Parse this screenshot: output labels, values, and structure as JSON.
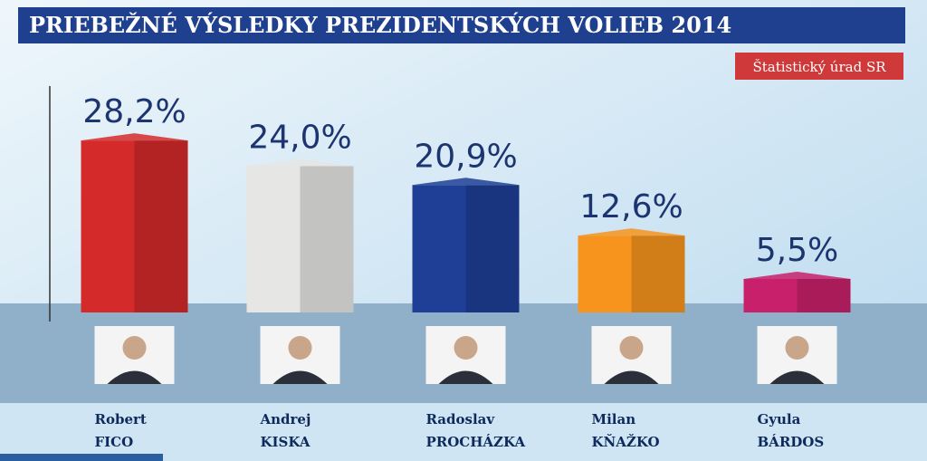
{
  "chart_data": {
    "type": "bar3d",
    "title": "PRIEBEŽNÉ VÝSLEDKY PREZIDENTSKÝCH VOLIEB 2014",
    "source": "Štatistický úrad SR",
    "categories": [
      [
        "Robert",
        "FICO"
      ],
      [
        "Andrej",
        "KISKA"
      ],
      [
        "Radoslav",
        "PROCHÁZKA"
      ],
      [
        "Milan",
        "KŇAŽKO"
      ],
      [
        "Gyula",
        "BÁRDOS"
      ]
    ],
    "values": [
      28.2,
      24.0,
      20.9,
      12.6,
      5.5
    ],
    "value_labels": [
      "28,2%",
      "24,0%",
      "20,9%",
      "12,6%",
      "5,5%"
    ],
    "colors": [
      "#d42a2a",
      "#e6e6e4",
      "#1f3f96",
      "#f7941d",
      "#c8206a"
    ],
    "ylim": [
      0,
      30
    ]
  }
}
